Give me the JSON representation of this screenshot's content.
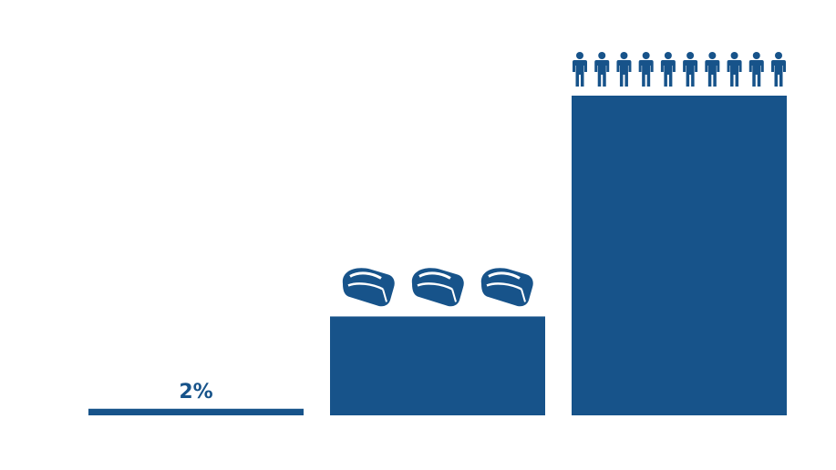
{
  "chart_data": {
    "type": "bar",
    "categories": [
      "",
      "",
      ""
    ],
    "values": [
      2,
      30,
      97
    ],
    "data_labels": [
      "2%",
      "",
      ""
    ],
    "icons": [
      {
        "name": "",
        "count": 0
      },
      {
        "name": "vr-headset-icon",
        "count": 3
      },
      {
        "name": "person-icon",
        "count": 10
      }
    ],
    "title": "",
    "xlabel": "",
    "ylabel": "",
    "ylim": [
      0,
      100
    ],
    "grid": false,
    "color": "#17538A"
  }
}
